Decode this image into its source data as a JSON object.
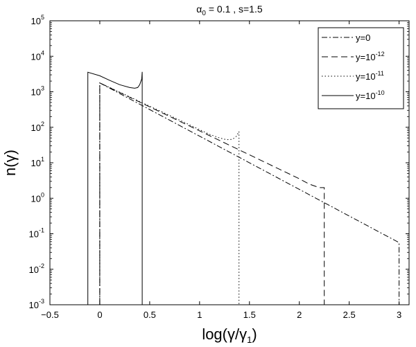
{
  "chart_data": {
    "type": "line",
    "title_parts": {
      "symbol": "α",
      "sub": "0",
      "rest": " = 0.1 , s=1.5"
    },
    "xlabel_parts": {
      "pre": "log(γ/γ",
      "sub": "1",
      "post": ")"
    },
    "ylabel": "n(γ)",
    "xlim": [
      -0.5,
      3.1
    ],
    "ylim_log10": [
      -3,
      5
    ],
    "y_scale": "log",
    "grid": false,
    "legend_position": "top-right",
    "x_ticks": [
      {
        "value": -0.5,
        "label": "−0.5"
      },
      {
        "value": 0,
        "label": "0"
      },
      {
        "value": 0.5,
        "label": "0.5"
      },
      {
        "value": 1,
        "label": "1"
      },
      {
        "value": 1.5,
        "label": "1.5"
      },
      {
        "value": 2,
        "label": "2"
      },
      {
        "value": 2.5,
        "label": "2.5"
      },
      {
        "value": 3,
        "label": "3"
      }
    ],
    "y_ticks": [
      {
        "exp": -3,
        "base": "10",
        "exponent": "-3"
      },
      {
        "exp": -2,
        "base": "10",
        "exponent": "-2"
      },
      {
        "exp": -1,
        "base": "10",
        "exponent": "-1"
      },
      {
        "exp": 0,
        "base": "10",
        "exponent": "0"
      },
      {
        "exp": 1,
        "base": "10",
        "exponent": "1"
      },
      {
        "exp": 2,
        "base": "10",
        "exponent": "2"
      },
      {
        "exp": 3,
        "base": "10",
        "exponent": "3"
      },
      {
        "exp": 4,
        "base": "10",
        "exponent": "4"
      },
      {
        "exp": 5,
        "base": "10",
        "exponent": "5"
      }
    ],
    "series": [
      {
        "legend_base": "y=0",
        "legend_exp": "",
        "dash": "8,3,2,3",
        "points": [
          [
            0,
            -3
          ],
          [
            0,
            3.25
          ],
          [
            3.0,
            -1.25
          ],
          [
            3.0,
            -3
          ]
        ]
      },
      {
        "legend_base": "y=10",
        "legend_exp": "-12",
        "dash": "9,5",
        "points": [
          [
            0,
            -3
          ],
          [
            0,
            3.25
          ],
          [
            2.0,
            0.55
          ],
          [
            2.1,
            0.4
          ],
          [
            2.2,
            0.3
          ],
          [
            2.25,
            0.3
          ],
          [
            2.25,
            -3
          ]
        ]
      },
      {
        "legend_base": "y=10",
        "legend_exp": "-11",
        "dash": "1.5,3",
        "points": [
          [
            0,
            -3
          ],
          [
            0,
            3.25
          ],
          [
            0.8,
            2.2
          ],
          [
            1.1,
            1.8
          ],
          [
            1.2,
            1.7
          ],
          [
            1.27,
            1.65
          ],
          [
            1.33,
            1.66
          ],
          [
            1.37,
            1.75
          ],
          [
            1.395,
            1.88
          ],
          [
            1.395,
            -3
          ]
        ]
      },
      {
        "legend_base": "y=10",
        "legend_exp": "-10",
        "dash": "",
        "points": [
          [
            -0.12,
            -3
          ],
          [
            -0.12,
            3.55
          ],
          [
            0.0,
            3.45
          ],
          [
            0.1,
            3.32
          ],
          [
            0.2,
            3.2
          ],
          [
            0.3,
            3.12
          ],
          [
            0.35,
            3.1
          ],
          [
            0.38,
            3.12
          ],
          [
            0.4,
            3.2
          ],
          [
            0.42,
            3.36
          ],
          [
            0.425,
            3.56
          ],
          [
            0.425,
            -3
          ]
        ]
      }
    ]
  }
}
